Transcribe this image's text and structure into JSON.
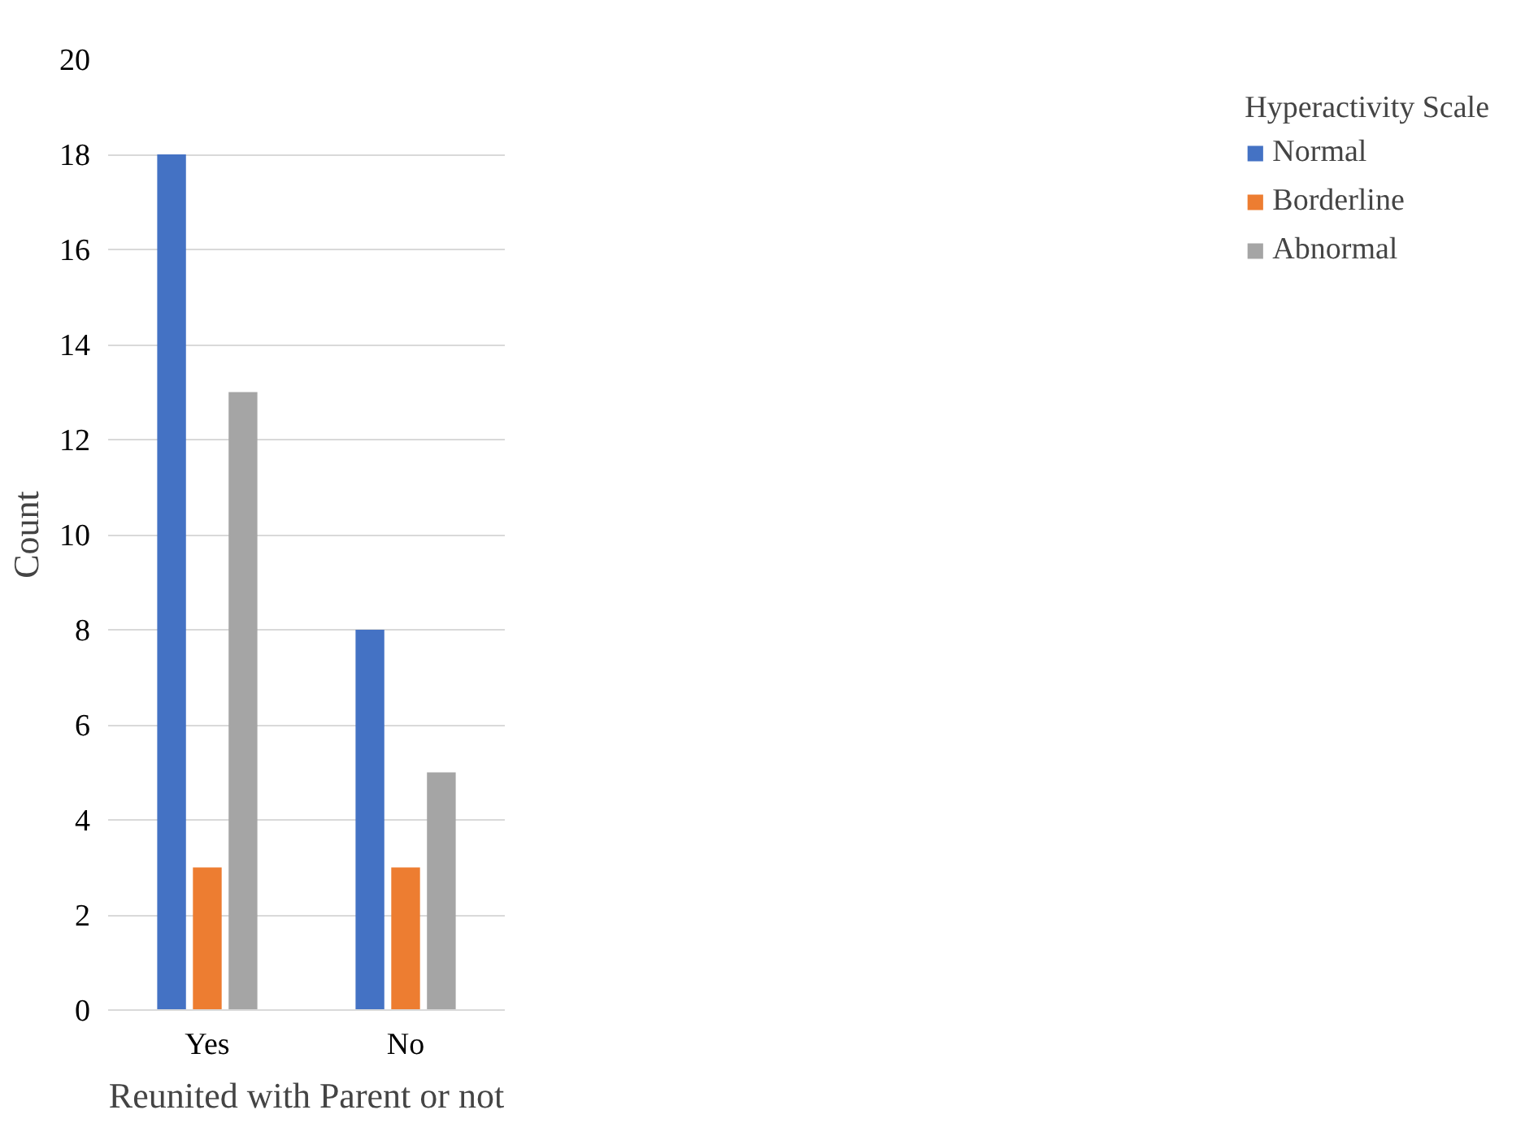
{
  "chart_data": {
    "type": "bar",
    "xlabel": "Reunited with Parent or not",
    "ylabel": "Count",
    "legend_title": "Hyperactivity Scale",
    "categories": [
      "Yes",
      "No"
    ],
    "series": [
      {
        "name": "Normal",
        "color": "#4472c4",
        "values": [
          18,
          8
        ]
      },
      {
        "name": "Borderline",
        "color": "#ed7d31",
        "values": [
          3,
          3
        ]
      },
      {
        "name": "Abnormal",
        "color": "#a5a5a5",
        "values": [
          13,
          5
        ]
      }
    ],
    "ylim": [
      0,
      20
    ],
    "yticks": [
      0,
      2,
      4,
      6,
      8,
      10,
      12,
      14,
      16,
      18,
      20
    ],
    "grid": "y",
    "legend": "right"
  }
}
